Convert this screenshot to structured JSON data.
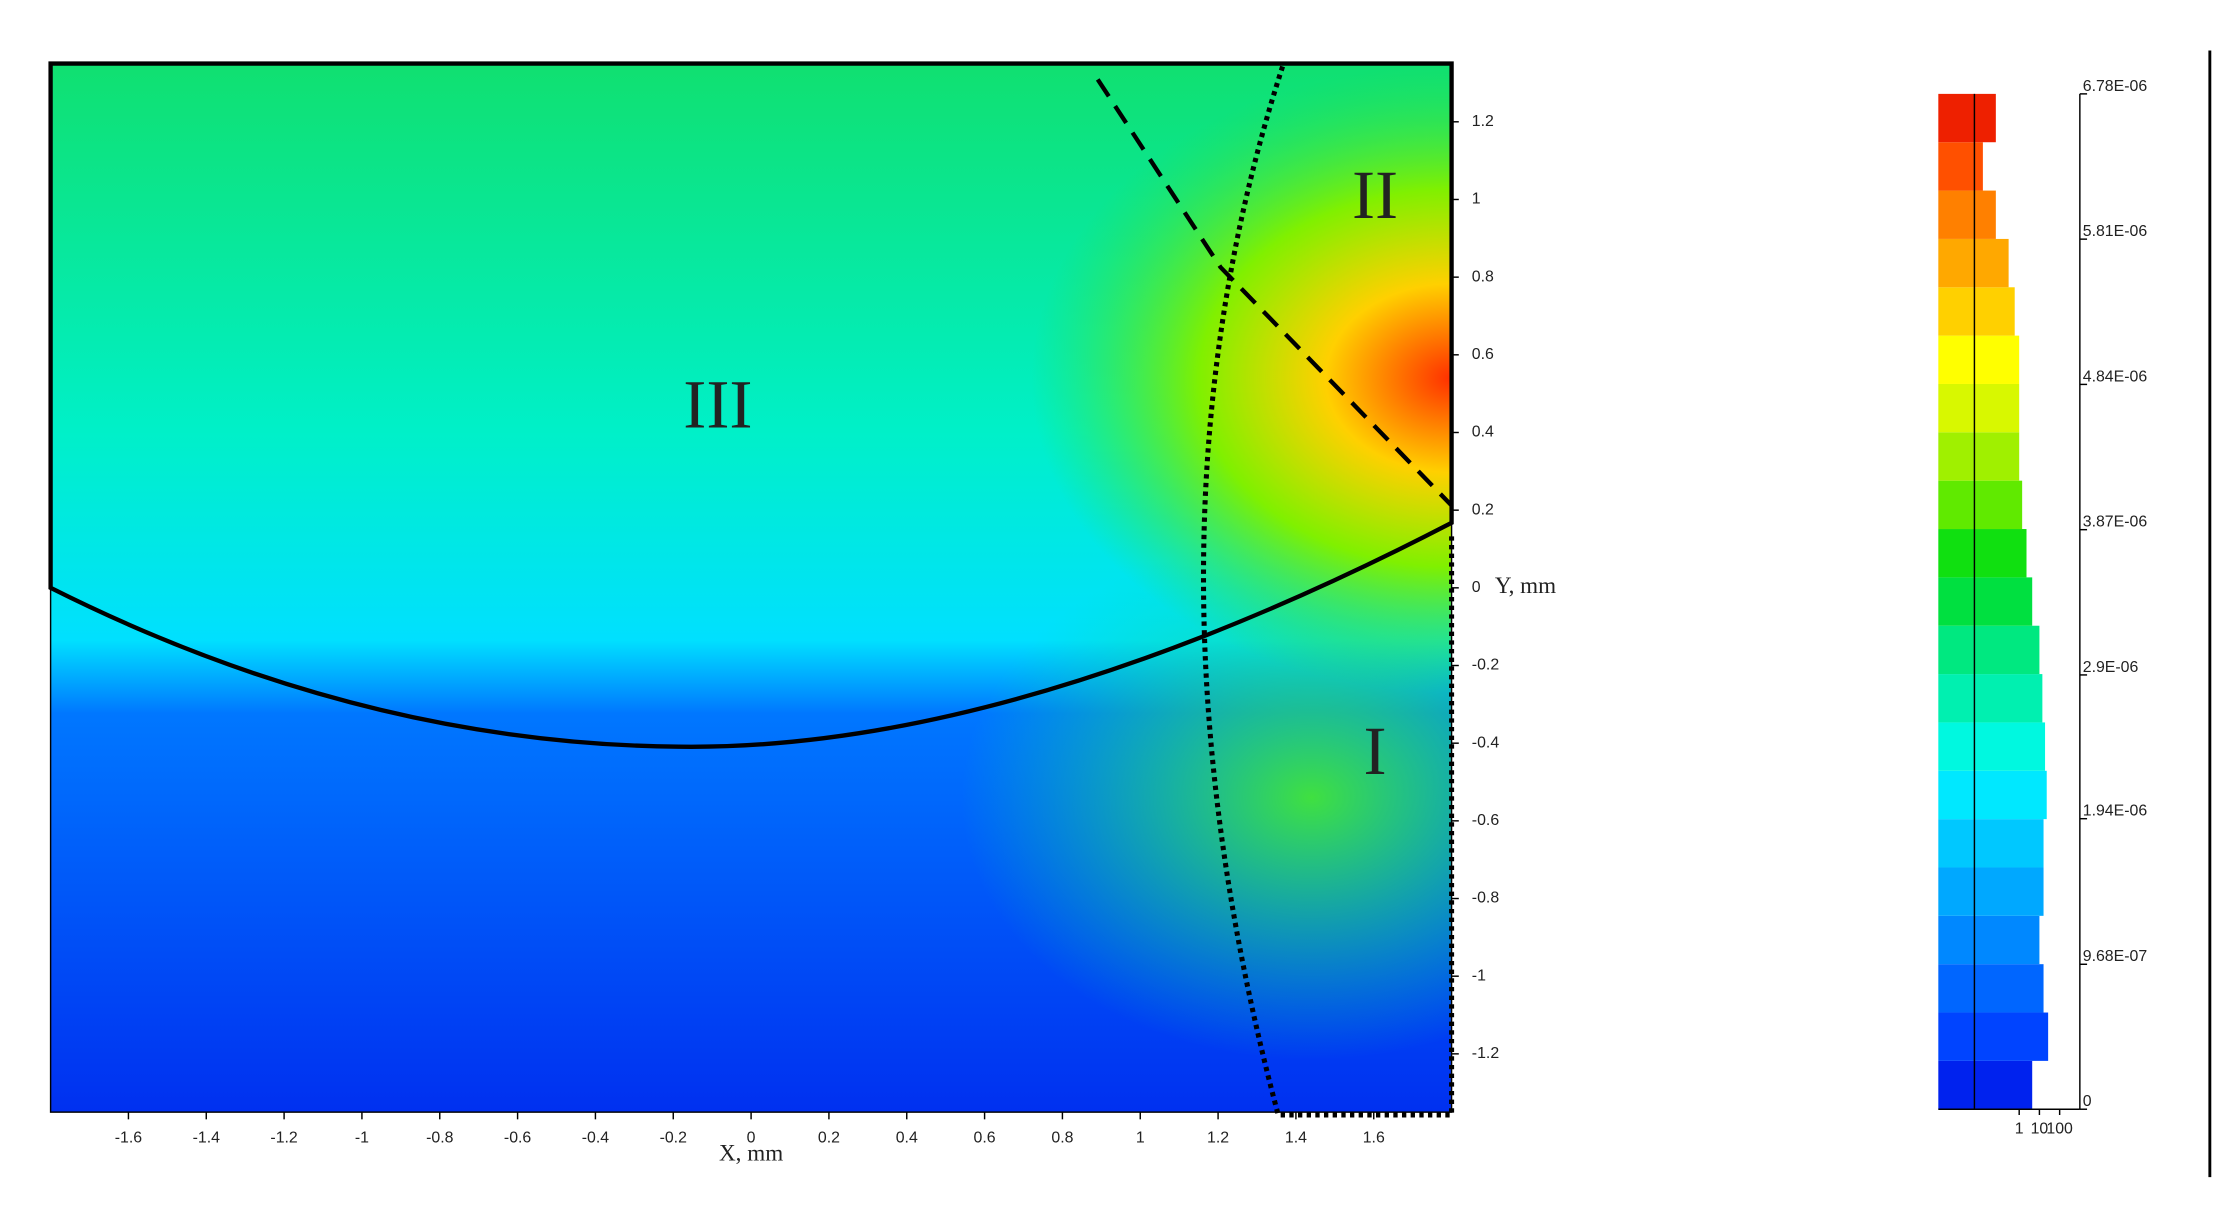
{
  "chart_data": {
    "type": "contour",
    "x_label": "X, mm",
    "y_label": "Y, mm",
    "xlim": [
      -1.8,
      1.8
    ],
    "xticks": [
      -1.6,
      -1.4,
      -1.2,
      -1,
      -0.8,
      -0.6,
      -0.4,
      -0.2,
      0,
      0.2,
      0.4,
      0.6,
      0.8,
      1,
      1.2,
      1.4,
      1.6
    ],
    "ylim": [
      -1.35,
      1.35
    ],
    "yticks": [
      -1.2,
      -1,
      -0.8,
      -0.6,
      -0.4,
      -0.2,
      0,
      0.2,
      0.4,
      0.6,
      0.8,
      1,
      1.2
    ],
    "annotations": [
      "III",
      "II",
      "I"
    ],
    "colorbar": {
      "lim": [
        0,
        6.78e-06
      ],
      "ticks": [
        0,
        {
          "value": 9.68e-07,
          "label": "9.68E-07"
        },
        {
          "value": 1.94e-06,
          "label": "1.94E-06"
        },
        {
          "value": 2.9e-06,
          "label": "2.9E-06"
        },
        {
          "value": 3.87e-06,
          "label": "3.87E-06"
        },
        {
          "value": 4.84e-06,
          "label": "4.84E-06"
        },
        {
          "value": 5.81e-06,
          "label": "5.81E-06"
        },
        {
          "value": 6.78e-06,
          "label": "6.78E-06"
        }
      ],
      "colors": [
        "#0022ee",
        "#0044ff",
        "#0066ff",
        "#0088ff",
        "#00a8ff",
        "#00c8ff",
        "#00e8ff",
        "#00f8e0",
        "#00f0b0",
        "#00e880",
        "#00e040",
        "#10e010",
        "#60ea00",
        "#a0f000",
        "#d8f800",
        "#ffff00",
        "#ffd000",
        "#ffa800",
        "#ff8000",
        "#ff5000",
        "#ee2000"
      ],
      "counts": [
        4.4,
        27,
        16,
        10,
        16,
        16,
        23,
        19,
        14,
        10,
        4.4,
        2.3,
        1.4,
        1,
        1,
        1,
        0.6,
        0.3,
        0.07,
        0.016,
        0.07
      ],
      "count_scale": "log",
      "count_lim": [
        0.0001,
        1000
      ],
      "count_ticks": [
        1,
        10,
        100
      ]
    }
  }
}
